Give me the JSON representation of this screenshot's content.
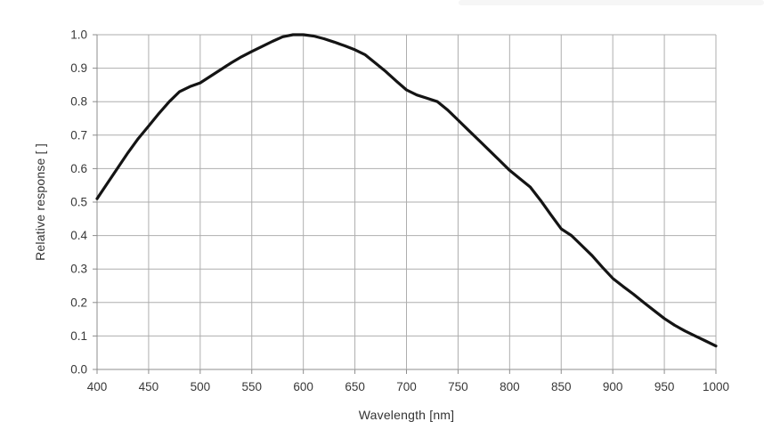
{
  "page": {
    "background": "#ffffff"
  },
  "decor": {
    "top_right_strip_color": "#f6f6f6"
  },
  "colors": {
    "curve": "#141414",
    "gridline": "#aeaeae",
    "axis_line": "#8c8c8c",
    "tick_text": "#383838",
    "axis_title_text": "#333333"
  },
  "chart_data": {
    "type": "line",
    "title": "",
    "xlabel": "Wavelength [nm]",
    "ylabel": "Relative response [ ]",
    "xlim": [
      400,
      1000
    ],
    "ylim": [
      0.0,
      1.0
    ],
    "grid": "on",
    "legend": "none",
    "x_ticks": [
      400,
      450,
      500,
      550,
      600,
      650,
      700,
      750,
      800,
      850,
      900,
      950,
      1000
    ],
    "y_tick_labels": [
      "0.0",
      "0.1",
      "0.2",
      "0.3",
      "0.4",
      "0.5",
      "0.6",
      "0.7",
      "0.8",
      "0.9",
      "1.0"
    ],
    "series": [
      {
        "name": "relative-response",
        "color": "#141414",
        "x": [
          400,
          410,
          420,
          430,
          440,
          450,
          460,
          470,
          480,
          490,
          500,
          510,
          520,
          530,
          540,
          550,
          560,
          570,
          580,
          590,
          600,
          610,
          620,
          630,
          640,
          650,
          660,
          670,
          680,
          690,
          700,
          710,
          720,
          730,
          740,
          750,
          760,
          770,
          780,
          790,
          800,
          810,
          820,
          830,
          840,
          850,
          860,
          870,
          880,
          890,
          900,
          910,
          920,
          930,
          940,
          950,
          960,
          970,
          980,
          990,
          1000
        ],
        "values": [
          0.51,
          0.556,
          0.602,
          0.648,
          0.69,
          0.727,
          0.765,
          0.8,
          0.83,
          0.845,
          0.856,
          0.876,
          0.896,
          0.916,
          0.934,
          0.95,
          0.965,
          0.98,
          0.994,
          1.0,
          1.0,
          0.996,
          0.988,
          0.978,
          0.967,
          0.955,
          0.94,
          0.915,
          0.89,
          0.862,
          0.835,
          0.82,
          0.81,
          0.8,
          0.775,
          0.745,
          0.715,
          0.685,
          0.655,
          0.625,
          0.595,
          0.57,
          0.545,
          0.505,
          0.462,
          0.42,
          0.4,
          0.37,
          0.34,
          0.305,
          0.272,
          0.248,
          0.225,
          0.2,
          0.176,
          0.152,
          0.132,
          0.115,
          0.1,
          0.085,
          0.07
        ]
      }
    ]
  }
}
